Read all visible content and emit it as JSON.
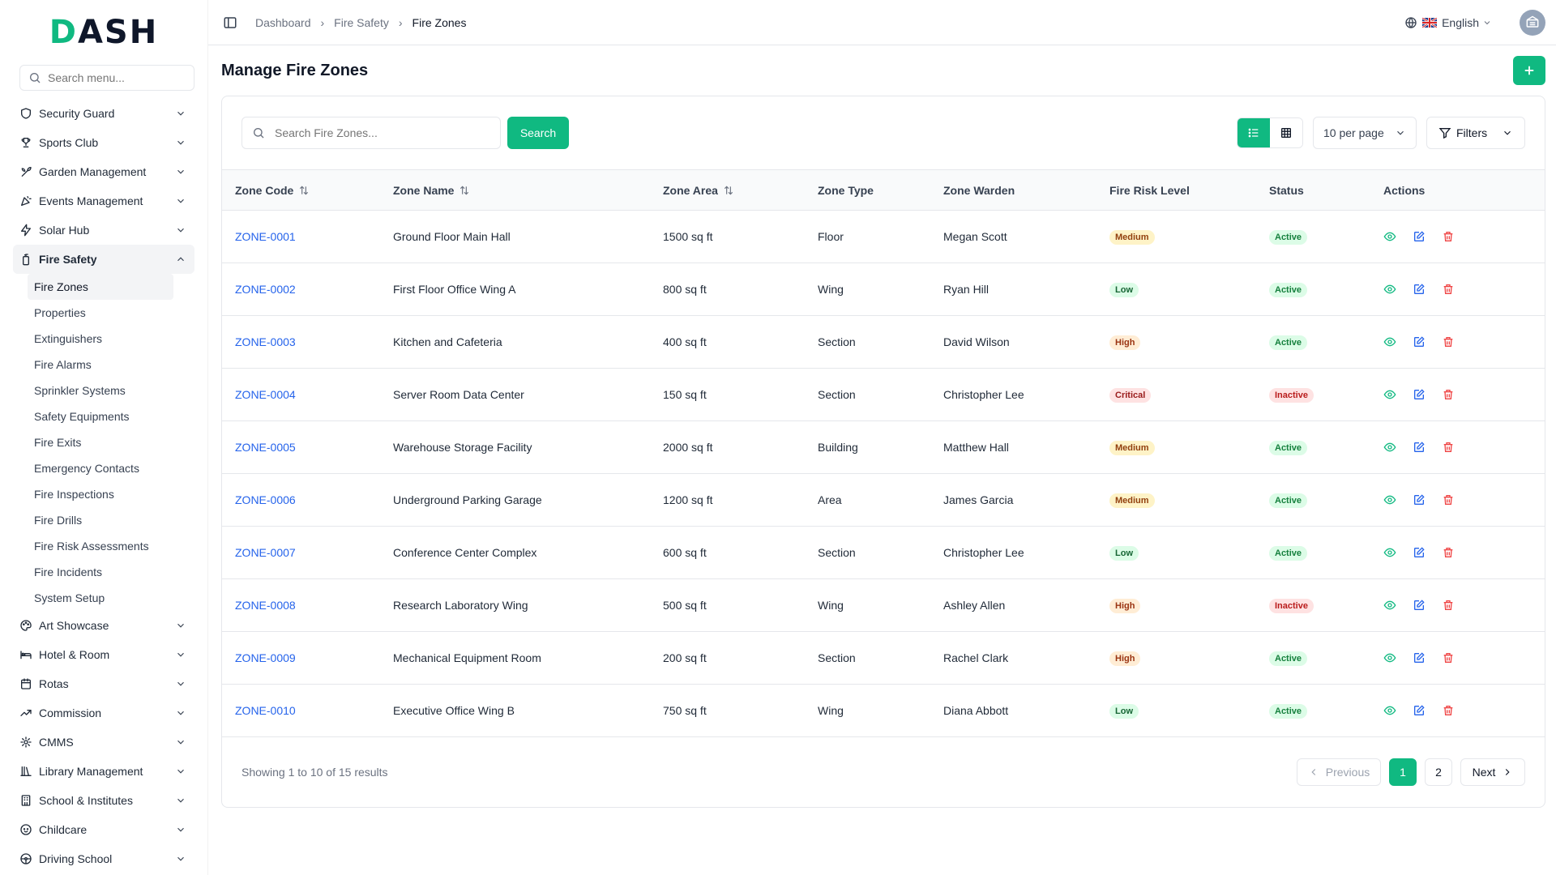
{
  "brand": {
    "logo": "DASH",
    "accent_color": "#10b981"
  },
  "sidebar": {
    "search_placeholder": "Search menu...",
    "items_top": [
      {
        "label": "Security Guard",
        "icon": "shield-icon"
      },
      {
        "label": "Sports Club",
        "icon": "trophy-icon"
      },
      {
        "label": "Garden Management",
        "icon": "plant-icon"
      },
      {
        "label": "Events Management",
        "icon": "party-icon"
      },
      {
        "label": "Solar Hub",
        "icon": "bolt-icon"
      }
    ],
    "active_group": {
      "label": "Fire Safety",
      "icon": "fire-extinguisher-icon"
    },
    "sub_items": [
      "Fire Zones",
      "Properties",
      "Extinguishers",
      "Fire Alarms",
      "Sprinkler Systems",
      "Safety Equipments",
      "Fire Exits",
      "Emergency Contacts",
      "Fire Inspections",
      "Fire Drills",
      "Fire Risk Assessments",
      "Fire Incidents",
      "System Setup"
    ],
    "items_bottom": [
      {
        "label": "Art Showcase",
        "icon": "palette-icon"
      },
      {
        "label": "Hotel & Room",
        "icon": "bed-icon"
      },
      {
        "label": "Rotas",
        "icon": "calendar-icon"
      },
      {
        "label": "Commission",
        "icon": "trend-icon"
      },
      {
        "label": "CMMS",
        "icon": "gear-icon"
      },
      {
        "label": "Library Management",
        "icon": "library-icon"
      },
      {
        "label": "School & Institutes",
        "icon": "building-icon"
      },
      {
        "label": "Childcare",
        "icon": "baby-icon"
      },
      {
        "label": "Driving School",
        "icon": "steering-wheel-icon"
      }
    ]
  },
  "header": {
    "breadcrumb": [
      "Dashboard",
      "Fire Safety",
      "Fire Zones"
    ],
    "language": "English"
  },
  "page": {
    "title": "Manage Fire Zones",
    "search_placeholder": "Search Fire Zones...",
    "search_button": "Search",
    "per_page": "10 per page",
    "filters": "Filters"
  },
  "table": {
    "columns": [
      "Zone Code",
      "Zone Name",
      "Zone Area",
      "Zone Type",
      "Zone Warden",
      "Fire Risk Level",
      "Status",
      "Actions"
    ],
    "rows": [
      {
        "code": "ZONE-0001",
        "name": "Ground Floor Main Hall",
        "area": "1500 sq ft",
        "type": "Floor",
        "warden": "Megan Scott",
        "risk": "Medium",
        "status": "Active"
      },
      {
        "code": "ZONE-0002",
        "name": "First Floor Office Wing A",
        "area": "800 sq ft",
        "type": "Wing",
        "warden": "Ryan Hill",
        "risk": "Low",
        "status": "Active"
      },
      {
        "code": "ZONE-0003",
        "name": "Kitchen and Cafeteria",
        "area": "400 sq ft",
        "type": "Section",
        "warden": "David Wilson",
        "risk": "High",
        "status": "Active"
      },
      {
        "code": "ZONE-0004",
        "name": "Server Room Data Center",
        "area": "150 sq ft",
        "type": "Section",
        "warden": "Christopher Lee",
        "risk": "Critical",
        "status": "Inactive"
      },
      {
        "code": "ZONE-0005",
        "name": "Warehouse Storage Facility",
        "area": "2000 sq ft",
        "type": "Building",
        "warden": "Matthew Hall",
        "risk": "Medium",
        "status": "Active"
      },
      {
        "code": "ZONE-0006",
        "name": "Underground Parking Garage",
        "area": "1200 sq ft",
        "type": "Area",
        "warden": "James Garcia",
        "risk": "Medium",
        "status": "Active"
      },
      {
        "code": "ZONE-0007",
        "name": "Conference Center Complex",
        "area": "600 sq ft",
        "type": "Section",
        "warden": "Christopher Lee",
        "risk": "Low",
        "status": "Active"
      },
      {
        "code": "ZONE-0008",
        "name": "Research Laboratory Wing",
        "area": "500 sq ft",
        "type": "Wing",
        "warden": "Ashley Allen",
        "risk": "High",
        "status": "Inactive"
      },
      {
        "code": "ZONE-0009",
        "name": "Mechanical Equipment Room",
        "area": "200 sq ft",
        "type": "Section",
        "warden": "Rachel Clark",
        "risk": "High",
        "status": "Active"
      },
      {
        "code": "ZONE-0010",
        "name": "Executive Office Wing B",
        "area": "750 sq ft",
        "type": "Wing",
        "warden": "Diana Abbott",
        "risk": "Low",
        "status": "Active"
      }
    ]
  },
  "footer": {
    "showing": "Showing 1 to 10 of 15 results",
    "prev": "Previous",
    "pages": [
      "1",
      "2"
    ],
    "current_page": "1",
    "next": "Next"
  }
}
